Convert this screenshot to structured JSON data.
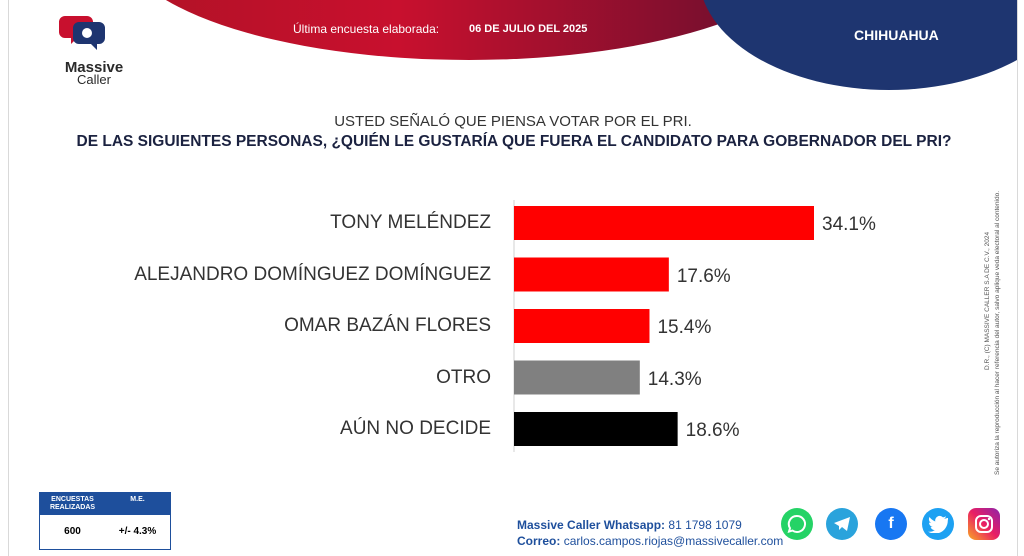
{
  "header": {
    "survey_label": "Última encuesta elaborada:",
    "survey_date": "06 DE JULIO DEL 2025",
    "state": "CHIHUAHUA",
    "logo_line1": "Massive",
    "logo_line2": "Caller"
  },
  "question": {
    "line1": "USTED SEÑALÓ QUE PIENSA VOTAR POR EL PRI.",
    "line2": "DE LAS SIGUIENTES PERSONAS, ¿QUIÉN LE GUSTARÍA QUE FUERA EL CANDIDATO PARA GOBERNADOR DEL PRI?"
  },
  "legal": {
    "line1": "D.R., (C) MASSIVE CALLER S.A DE C.V., 2024",
    "line2": "Se autoriza la reproducción al hacer referencia del autor, salvo aplique veda electoral al contenido."
  },
  "chart_data": {
    "type": "bar",
    "orientation": "horizontal",
    "categories": [
      "TONY MELÉNDEZ",
      "ALEJANDRO DOMÍNGUEZ DOMÍNGUEZ",
      "OMAR BAZÁN FLORES",
      "OTRO",
      "AÚN NO DECIDE"
    ],
    "values": [
      34.1,
      17.6,
      15.4,
      14.3,
      18.6
    ],
    "labels": [
      "34.1%",
      "17.6%",
      "15.4%",
      "14.3%",
      "18.6%"
    ],
    "colors": [
      "#ff0000",
      "#ff0000",
      "#ff0000",
      "#808080",
      "#000000"
    ],
    "xlim": [
      0,
      40
    ],
    "grid": false
  },
  "stats": {
    "col1_header": "ENCUESTAS REALIZADAS",
    "col2_header": "M.E.",
    "col1_value": "600",
    "col2_value": "+/- 4.3%"
  },
  "contact": {
    "whatsapp_label": "Massive Caller Whatsapp:",
    "whatsapp_number": "81 1798 1079",
    "email_label": "Correo:",
    "email": "carlos.campos.riojas@massivecaller.com"
  },
  "social": [
    "whatsapp-icon",
    "telegram-icon",
    "facebook-icon",
    "twitter-icon",
    "instagram-icon"
  ]
}
